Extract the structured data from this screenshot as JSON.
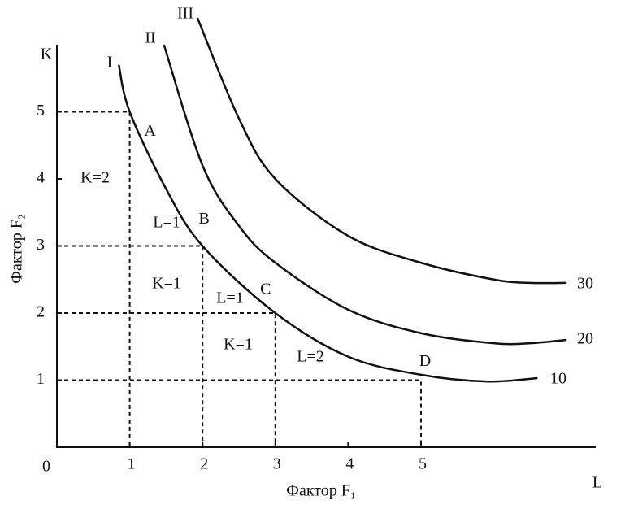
{
  "chart_data": {
    "type": "line",
    "x_label": "Фактор F₁",
    "y_label": "Фактор F₂",
    "x_axis_name": "L",
    "y_axis_name": "K",
    "origin_label": "0",
    "xlim": [
      0,
      7.4
    ],
    "ylim": [
      0,
      6
    ],
    "xticks": [
      1,
      2,
      3,
      4,
      5
    ],
    "yticks": [
      1,
      2,
      3,
      4,
      5
    ],
    "series": [
      {
        "name": "I",
        "level": 10,
        "x": [
          0.85,
          1,
          1.5,
          2,
          3,
          4,
          5,
          5.9,
          6.6
        ],
        "values": [
          5.7,
          5,
          3.85,
          3,
          2,
          1.35,
          1.08,
          0.98,
          1.03
        ]
      },
      {
        "name": "II",
        "level": 20,
        "x": [
          1.47,
          2,
          2.5,
          3,
          4,
          5,
          6,
          6.5,
          7.0
        ],
        "values": [
          6.0,
          4.2,
          3.3,
          2.75,
          2.05,
          1.7,
          1.55,
          1.55,
          1.6
        ]
      },
      {
        "name": "III",
        "level": 30,
        "x": [
          1.93,
          2.5,
          3,
          4,
          5,
          6,
          6.5,
          7.0
        ],
        "values": [
          6.4,
          4.9,
          4.0,
          3.15,
          2.75,
          2.5,
          2.45,
          2.45
        ]
      }
    ],
    "points": [
      {
        "label": "A",
        "x": 1,
        "y": 5
      },
      {
        "label": "B",
        "x": 2,
        "y": 3
      },
      {
        "label": "C",
        "x": 3,
        "y": 2
      },
      {
        "label": "D",
        "x": 5,
        "y": 1
      }
    ],
    "annotations": [
      "K=2",
      "L=1",
      "K=1",
      "L=1",
      "K=1",
      "L=2"
    ]
  }
}
